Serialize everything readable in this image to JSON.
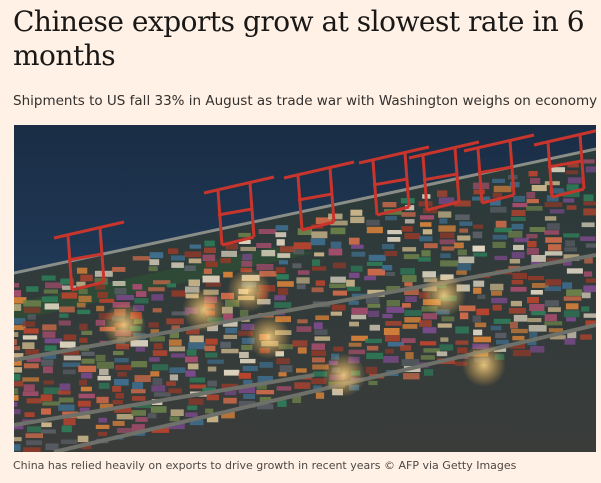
{
  "article": {
    "headline": "Chinese exports grow at slowest rate in 6 months",
    "standfirst": "Shipments to US fall 33% in August as trade war with Washington weighs on economy",
    "image": {
      "subject": "port-terminal-photo",
      "caption": "China has relied heavily on exports to drive growth in recent years © AFP via Getty Images"
    }
  },
  "colors": {
    "background": "#fff1e5",
    "headline": "#1a1817",
    "text": "#33302e",
    "caption": "#4d4845",
    "water": "#1d3552",
    "crane_red": "#c8352c"
  }
}
